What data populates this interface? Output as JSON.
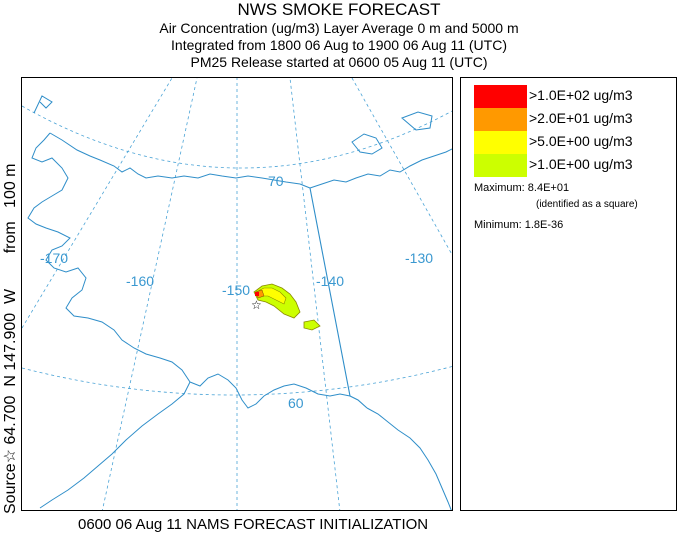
{
  "header": {
    "title": "NWS SMOKE FORECAST",
    "line2": "Air Concentration (ug/m3) Layer Average    0 m and  5000 m",
    "line3": "Integrated from 1800 06 Aug to 1900 06 Aug 11 (UTC)",
    "line4": "PM25 Release started at 0600 05 Aug 11 (UTC)"
  },
  "side_label": {
    "source": "Source",
    "star": "☆",
    "coords": " 64.700  N 147.900  W        from   100 m"
  },
  "footer": "0600 06 Aug 11 NAMS FORECAST INITIALIZATION",
  "map": {
    "grid_labels": {
      "lat_70": "70",
      "lat_60": "60",
      "lon_170": "-170",
      "lon_160": "-160",
      "lon_150": "-150",
      "lon_140": "-140",
      "lon_130": "-130"
    },
    "source_marker": "☆"
  },
  "legend": {
    "entries": [
      {
        "label": ">1.0E+02 ug/m3",
        "color": "#ff0000"
      },
      {
        "label": ">2.0E+01 ug/m3",
        "color": "#ff9900"
      },
      {
        "label": ">5.0E+00 ug/m3",
        "color": "#ffff00"
      },
      {
        "label": ">1.0E+00 ug/m3",
        "color": "#ccff00"
      }
    ],
    "maximum": "Maximum: 8.4E+01",
    "maximum_note": "(identified as a square)",
    "minimum": "Minimum: 1.8E-36"
  }
}
